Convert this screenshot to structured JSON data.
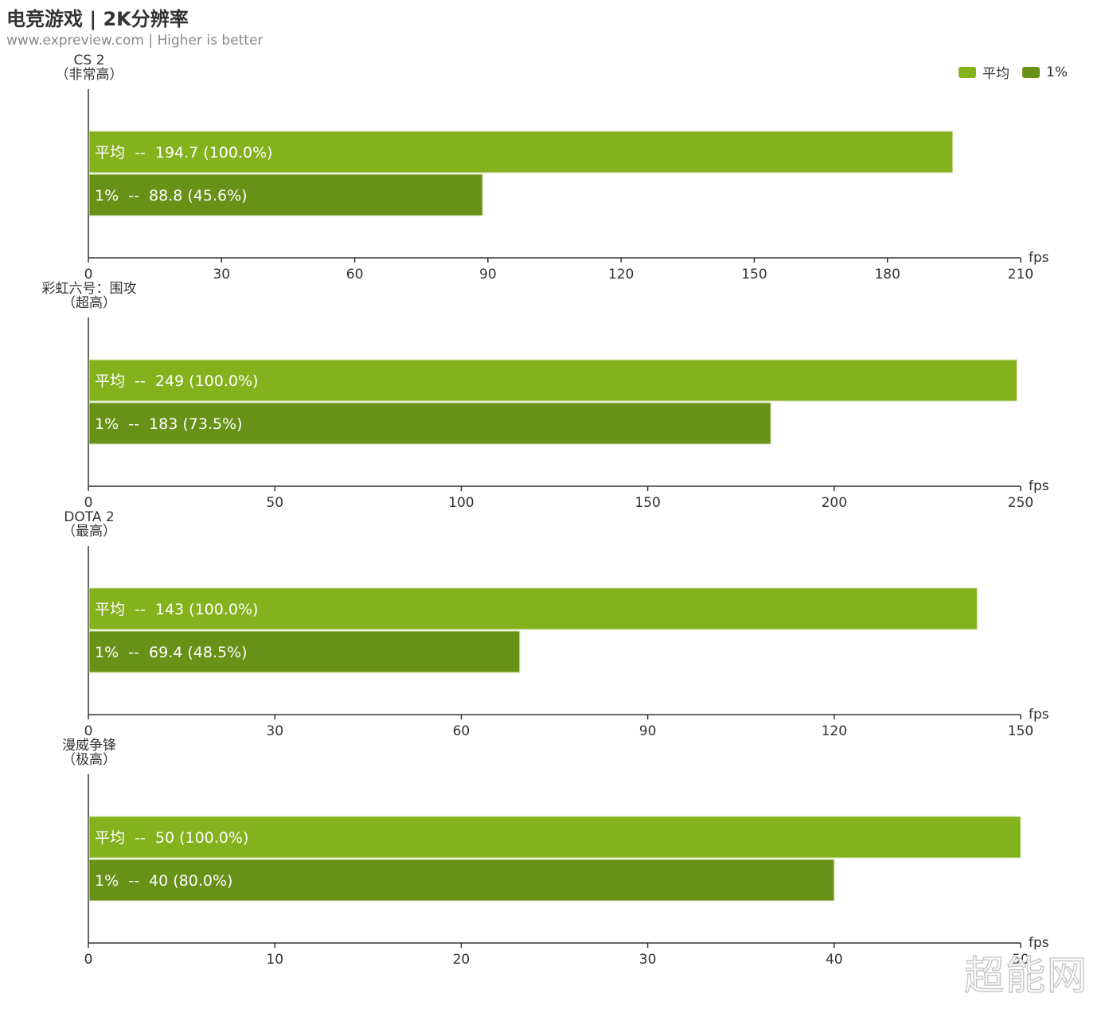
{
  "title": "电竞游戏 | 2K分辨率",
  "subtitle": "www.expreview.com | Higher is better",
  "watermark": "超能网",
  "legend": [
    {
      "label": "平均",
      "color": "#83b21d"
    },
    {
      "label": "1%",
      "color": "#679117"
    }
  ],
  "chart_data": [
    {
      "type": "bar",
      "orientation": "horizontal",
      "game": "CS 2",
      "setting": "（非常高）",
      "xlabel": "fps",
      "xlim": [
        0,
        210
      ],
      "ticks": [
        0,
        30,
        60,
        90,
        120,
        150,
        180,
        210
      ],
      "series": [
        {
          "name": "平均",
          "value": 194.7,
          "label": "平均  --  194.7 (100.0%)"
        },
        {
          "name": "1%",
          "value": 88.8,
          "label": "1%  --  88.8 (45.6%)"
        }
      ]
    },
    {
      "type": "bar",
      "orientation": "horizontal",
      "game": "彩虹六号：围攻",
      "setting": "（超高）",
      "xlabel": "fps",
      "xlim": [
        0,
        250
      ],
      "ticks": [
        0,
        50,
        100,
        150,
        200,
        250
      ],
      "series": [
        {
          "name": "平均",
          "value": 249,
          "label": "平均  --  249 (100.0%)"
        },
        {
          "name": "1%",
          "value": 183,
          "label": "1%  --  183 (73.5%)"
        }
      ]
    },
    {
      "type": "bar",
      "orientation": "horizontal",
      "game": "DOTA 2",
      "setting": "（最高）",
      "xlabel": "fps",
      "xlim": [
        0,
        150
      ],
      "ticks": [
        0,
        30,
        60,
        90,
        120,
        150
      ],
      "series": [
        {
          "name": "平均",
          "value": 143,
          "label": "平均  --  143 (100.0%)"
        },
        {
          "name": "1%",
          "value": 69.4,
          "label": "1%  --  69.4 (48.5%)"
        }
      ]
    },
    {
      "type": "bar",
      "orientation": "horizontal",
      "game": "漫威争锋",
      "setting": "（极高）",
      "xlabel": "fps",
      "xlim": [
        0,
        50
      ],
      "ticks": [
        0,
        10,
        20,
        30,
        40,
        50
      ],
      "series": [
        {
          "name": "平均",
          "value": 50,
          "label": "平均  --  50 (100.0%)"
        },
        {
          "name": "1%",
          "value": 40,
          "label": "1%  --  40 (80.0%)"
        }
      ]
    }
  ]
}
